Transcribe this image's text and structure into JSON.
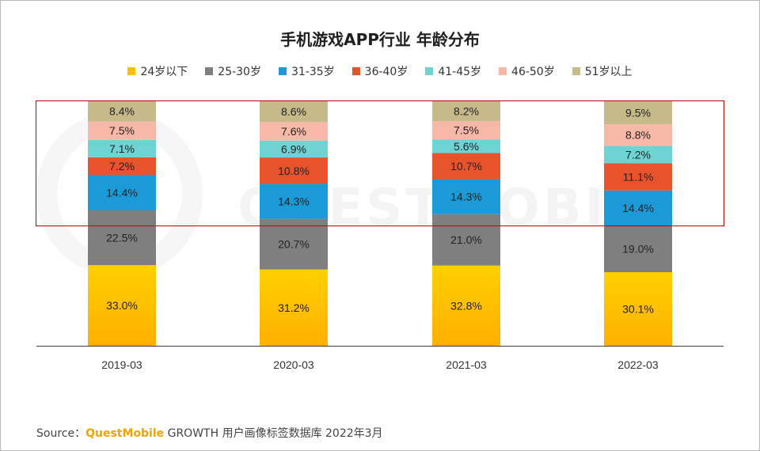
{
  "chart_data": {
    "type": "bar",
    "stacked": true,
    "title": "手机游戏APP行业 年龄分布",
    "categories": [
      "2019-03",
      "2020-03",
      "2021-03",
      "2022-03"
    ],
    "series": [
      {
        "name": "24岁以下",
        "color": "#ffc000",
        "values": [
          33.0,
          31.2,
          32.8,
          30.1
        ],
        "labels": [
          "33.0%",
          "31.2%",
          "32.8%",
          "30.1%"
        ]
      },
      {
        "name": "25-30岁",
        "color": "#7f7f7f",
        "values": [
          22.5,
          20.7,
          21.0,
          19.0
        ],
        "labels": [
          "22.5%",
          "20.7%",
          "21.0%",
          "19.0%"
        ]
      },
      {
        "name": "31-35岁",
        "color": "#1a9ad6",
        "values": [
          14.4,
          14.3,
          14.3,
          14.4
        ],
        "labels": [
          "14.4%",
          "14.3%",
          "14.3%",
          "14.4%"
        ]
      },
      {
        "name": "36-40岁",
        "color": "#e8532b",
        "values": [
          7.2,
          10.8,
          10.7,
          11.1
        ],
        "labels": [
          "7.2%",
          "10.8%",
          "10.7%",
          "11.1%"
        ]
      },
      {
        "name": "41-45岁",
        "color": "#6ed3d3",
        "values": [
          7.1,
          6.9,
          5.6,
          7.2
        ],
        "labels": [
          "7.1%",
          "6.9%",
          "5.6%",
          "7.2%"
        ]
      },
      {
        "name": "46-50岁",
        "color": "#f8b8a8",
        "values": [
          7.5,
          7.6,
          7.5,
          8.8
        ],
        "labels": [
          "7.5%",
          "7.6%",
          "7.5%",
          "8.8%"
        ]
      },
      {
        "name": "51岁以上",
        "color": "#c6b98a",
        "values": [
          8.4,
          8.6,
          8.2,
          9.5
        ],
        "labels": [
          "8.4%",
          "8.6%",
          "8.2%",
          "9.5%"
        ]
      }
    ],
    "ylim": [
      0,
      100
    ],
    "legend_position": "top",
    "grid": false,
    "highlight_color": "#c00000"
  },
  "watermark": "QUESTMOBILE",
  "source": {
    "prefix": "Source：",
    "brand": "QuestMobile",
    "rest": " GROWTH 用户画像标签数据库 2022年3月"
  }
}
